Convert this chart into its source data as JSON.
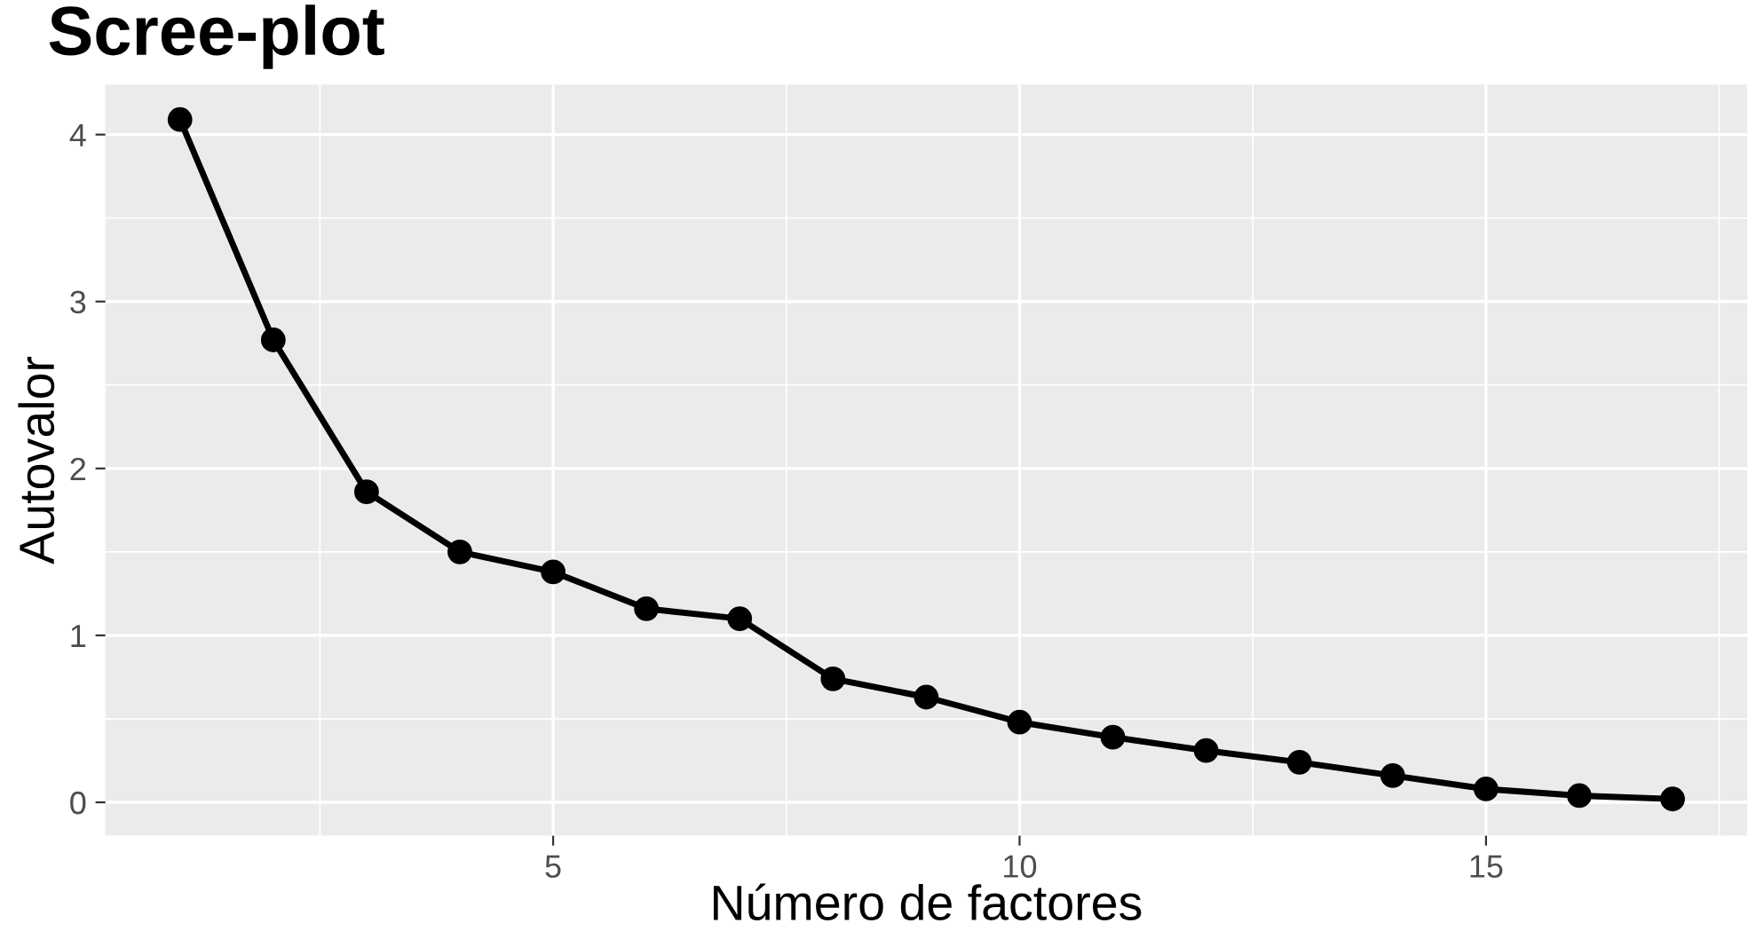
{
  "chart_data": {
    "type": "line",
    "title": "Scree-plot",
    "xlabel": "Número de factores",
    "ylabel": "Autovalor",
    "x": [
      1,
      2,
      3,
      4,
      5,
      6,
      7,
      8,
      9,
      10,
      11,
      12,
      13,
      14,
      15,
      16,
      17
    ],
    "series": [
      {
        "color": "#000000",
        "values": [
          4.09,
          2.77,
          1.86,
          1.5,
          1.38,
          1.16,
          1.1,
          0.74,
          0.63,
          0.48,
          0.39,
          0.31,
          0.24,
          0.16,
          0.08,
          0.04,
          0.02
        ]
      }
    ],
    "xlim": [
      0.2,
      17.8
    ],
    "xticks": [
      5,
      10,
      15
    ],
    "ylim": [
      -0.2,
      4.3
    ],
    "yticks": [
      0,
      1,
      2,
      3,
      4
    ],
    "grid": true,
    "marker": "circle",
    "line_style": "solid"
  }
}
